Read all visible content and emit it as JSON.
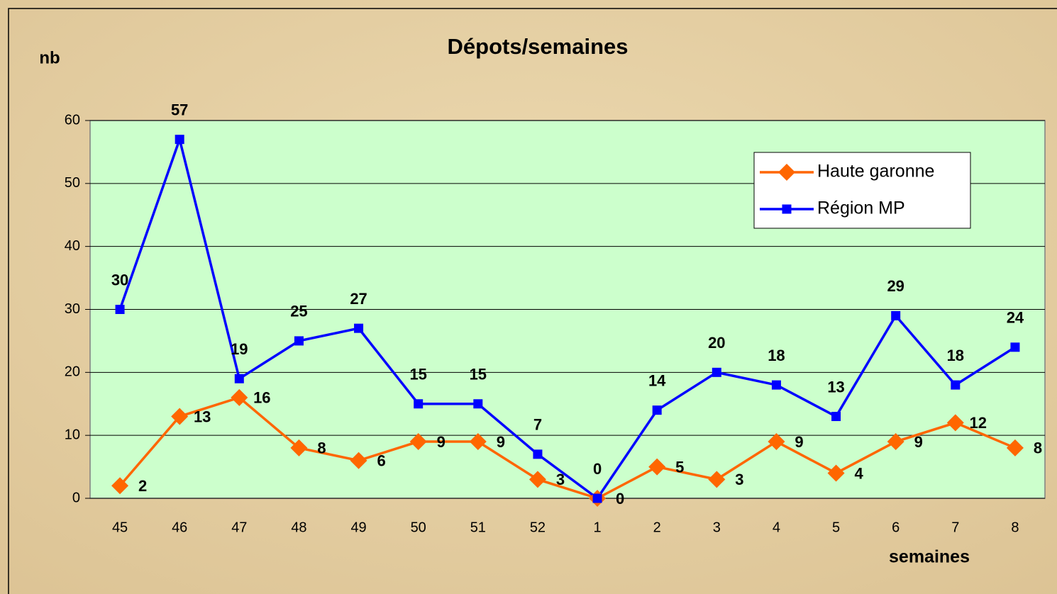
{
  "chart_data": {
    "type": "line",
    "title": "Dépots/semaines",
    "ylabel": "nb",
    "xlabel": "semaines",
    "categories": [
      "45",
      "46",
      "47",
      "48",
      "49",
      "50",
      "51",
      "52",
      "1",
      "2",
      "3",
      "4",
      "5",
      "6",
      "7",
      "8"
    ],
    "series": [
      {
        "name": "Haute garonne",
        "color": "#ff6600",
        "marker": "diamond",
        "values": [
          2,
          13,
          16,
          8,
          6,
          9,
          9,
          3,
          0,
          5,
          3,
          9,
          4,
          9,
          12,
          8
        ]
      },
      {
        "name": "Région MP",
        "color": "#0000ff",
        "marker": "square",
        "values": [
          30,
          57,
          19,
          25,
          27,
          15,
          15,
          7,
          0,
          14,
          20,
          18,
          13,
          29,
          18,
          24
        ]
      }
    ],
    "ylim": [
      0,
      60
    ],
    "yticks": [
      0,
      10,
      20,
      30,
      40,
      50,
      60
    ],
    "grid": true,
    "legend": "upper right"
  }
}
